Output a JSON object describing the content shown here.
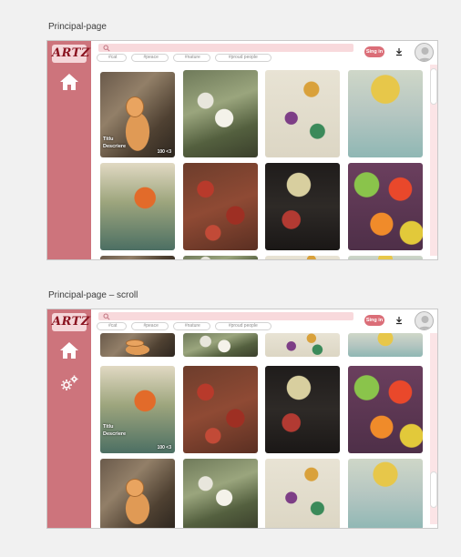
{
  "frames": [
    {
      "label": "Principal-page",
      "gallery": [
        {
          "art": "cat",
          "title": "Titlu",
          "description": "Descriere",
          "likes": "100 <3"
        },
        {
          "art": "flower"
        },
        {
          "art": "beetle"
        },
        {
          "art": "girl"
        },
        {
          "art": "couple"
        },
        {
          "art": "flowers-red"
        },
        {
          "art": "skull"
        },
        {
          "art": "citrus"
        }
      ],
      "sidebar_icons": [
        "home-icon"
      ],
      "scroll": 0
    },
    {
      "label": "Principal-page – scroll",
      "gallery": [
        {
          "art": "couple",
          "title": "Titlu",
          "description": "Descriere",
          "likes": "100 <3"
        },
        {
          "art": "flowers-red"
        },
        {
          "art": "skull"
        },
        {
          "art": "citrus"
        },
        {
          "art": "cat"
        },
        {
          "art": "flower"
        },
        {
          "art": "beetle"
        },
        {
          "art": "girl"
        }
      ],
      "sidebar_icons": [
        "home-icon",
        "gear-icon"
      ],
      "scroll": 1
    }
  ],
  "header": {
    "logo_text": "ARTZY",
    "search_placeholder": "",
    "chips": [
      "#cat",
      "#peace",
      "#nature",
      "#proud people"
    ],
    "signin_label": "Sing in"
  },
  "colors": {
    "sidebar": "#cd747c",
    "accent": "#db6e78",
    "search_bg": "#f8d9dc"
  }
}
